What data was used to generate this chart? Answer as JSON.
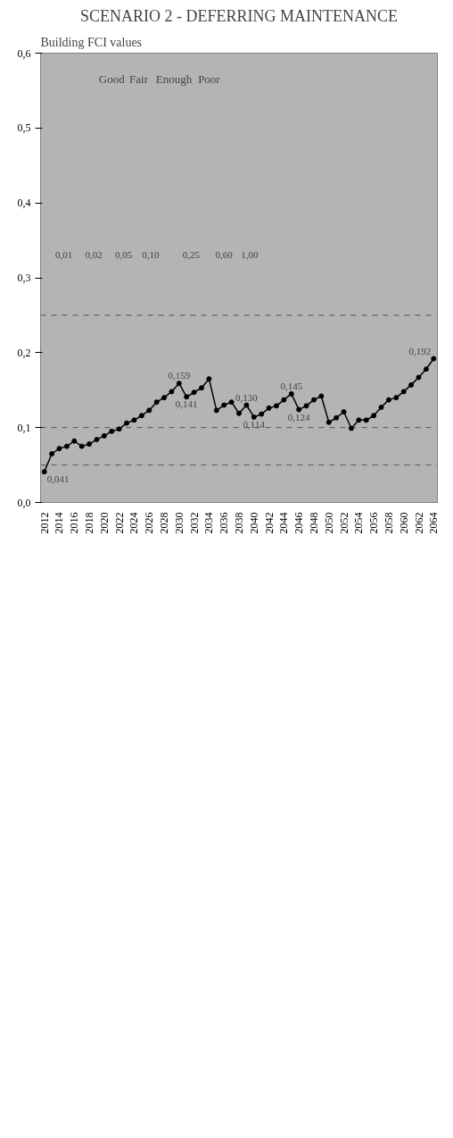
{
  "chart_data": {
    "type": "line",
    "title": "SCENARIO 2 - DEFERRING MAINTENANCE",
    "ylabel": "Building FCI values",
    "x": [
      2012,
      2013,
      2014,
      2015,
      2016,
      2017,
      2018,
      2019,
      2020,
      2021,
      2022,
      2023,
      2024,
      2025,
      2026,
      2027,
      2028,
      2029,
      2030,
      2031,
      2032,
      2033,
      2034,
      2035,
      2036,
      2037,
      2038,
      2039,
      2040,
      2041,
      2042,
      2043,
      2044,
      2045,
      2046,
      2047,
      2048,
      2049,
      2050,
      2051,
      2052,
      2053,
      2054,
      2055,
      2056,
      2057,
      2058,
      2059,
      2060,
      2061,
      2062,
      2063,
      2064
    ],
    "series": [
      {
        "color": "#000000",
        "values": [
          0.041,
          0.065,
          0.072,
          0.075,
          0.082,
          0.075,
          0.078,
          0.084,
          0.089,
          0.095,
          0.098,
          0.106,
          0.11,
          0.116,
          0.123,
          0.134,
          0.14,
          0.148,
          0.159,
          0.141,
          0.147,
          0.153,
          0.165,
          0.123,
          0.13,
          0.134,
          0.119,
          0.13,
          0.114,
          0.118,
          0.126,
          0.129,
          0.137,
          0.145,
          0.124,
          0.129,
          0.137,
          0.142,
          0.107,
          0.113,
          0.121,
          0.099,
          0.11,
          0.11,
          0.116,
          0.127,
          0.137,
          0.14,
          0.148,
          0.157,
          0.167,
          0.178,
          0.192
        ],
        "value_labels": [
          "0,041",
          null,
          null,
          null,
          null,
          null,
          null,
          null,
          null,
          null,
          null,
          null,
          null,
          null,
          null,
          null,
          null,
          null,
          "0,159",
          "0,141",
          null,
          null,
          null,
          null,
          null,
          null,
          null,
          "0,130",
          "0,114",
          null,
          null,
          null,
          null,
          "0,145",
          "0,124",
          null,
          null,
          null,
          null,
          null,
          null,
          null,
          null,
          null,
          null,
          null,
          null,
          null,
          null,
          null,
          null,
          null,
          "0,192"
        ]
      }
    ],
    "xlim": [
      2011.5,
      2064.5
    ],
    "xticks": [
      2012,
      2014,
      2016,
      2018,
      2020,
      2022,
      2024,
      2026,
      2028,
      2030,
      2032,
      2034,
      2036,
      2038,
      2040,
      2042,
      2044,
      2046,
      2048,
      2050,
      2052,
      2054,
      2056,
      2058,
      2060,
      2062,
      2064
    ],
    "ylim": [
      0,
      0.6
    ],
    "yticks": [
      {
        "value": 0,
        "label": "0,0"
      },
      {
        "value": 0.1,
        "label": "0,1"
      },
      {
        "value": 0.2,
        "label": "0,2"
      },
      {
        "value": 0.3,
        "label": "0,3"
      },
      {
        "value": 0.4,
        "label": "0,4"
      },
      {
        "value": 0.5,
        "label": "0,5"
      },
      {
        "value": 0.6,
        "label": "0,6"
      }
    ],
    "ref_lines": [
      {
        "axis": "y",
        "value": 0.05,
        "color": "#555555",
        "line_style": "dashed"
      },
      {
        "axis": "y",
        "value": 0.1,
        "color": "#555555",
        "line_style": "dashed"
      },
      {
        "axis": "y",
        "value": 0.25,
        "color": "#555555",
        "line_style": "dashed"
      }
    ],
    "annotations": [
      "Good",
      "Fair",
      "Enough",
      "Poor",
      "0,01",
      "0,02",
      "0,05",
      "0,10",
      "0,25",
      "0,60",
      "1,00"
    ],
    "marker": "circle",
    "line_style": "solid",
    "grid": false
  }
}
